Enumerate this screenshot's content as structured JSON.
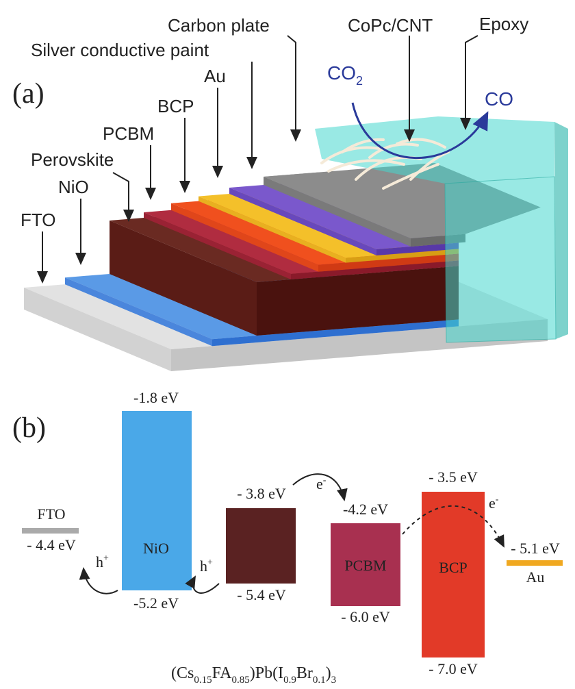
{
  "panel_a": {
    "label": "(a)",
    "layers": {
      "carbon_plate": "Carbon plate",
      "copc_cnt": "CoPc/CNT",
      "epoxy": "Epoxy",
      "silver_paint": "Silver conductive paint",
      "au": "Au",
      "bcp": "BCP",
      "pcbm": "PCBM",
      "perovskite": "Perovskite",
      "nio": "NiO",
      "fto": "FTO"
    },
    "reactant": {
      "base": "CO",
      "sub": "2"
    },
    "product": "CO"
  },
  "panel_b": {
    "label": "(b)",
    "fto": {
      "name": "FTO",
      "level": "- 4.4 eV"
    },
    "nio": {
      "name": "NiO",
      "top": "-1.8 eV",
      "bottom": "-5.2 eV"
    },
    "perovskite": {
      "top": "- 3.8 eV",
      "bottom": "- 5.4 eV"
    },
    "pcbm": {
      "name": "PCBM",
      "top": "-4.2 eV",
      "bottom": "- 6.0 eV"
    },
    "bcp": {
      "name": "BCP",
      "top": "- 3.5 eV",
      "bottom": "- 7.0 eV"
    },
    "au": {
      "name": "Au",
      "level": "- 5.1 eV"
    },
    "hole": {
      "base": "h",
      "sup": "+"
    },
    "electron": {
      "base": "e",
      "sup": "-"
    },
    "formula": [
      {
        "text": "(Cs"
      },
      {
        "sub": "0.15"
      },
      {
        "text": "FA"
      },
      {
        "sub": "0.85"
      },
      {
        "text": ")Pb(I"
      },
      {
        "sub": "0.9"
      },
      {
        "text": "Br"
      },
      {
        "sub": "0.1"
      },
      {
        "text": ")"
      },
      {
        "sub": "3"
      }
    ]
  }
}
